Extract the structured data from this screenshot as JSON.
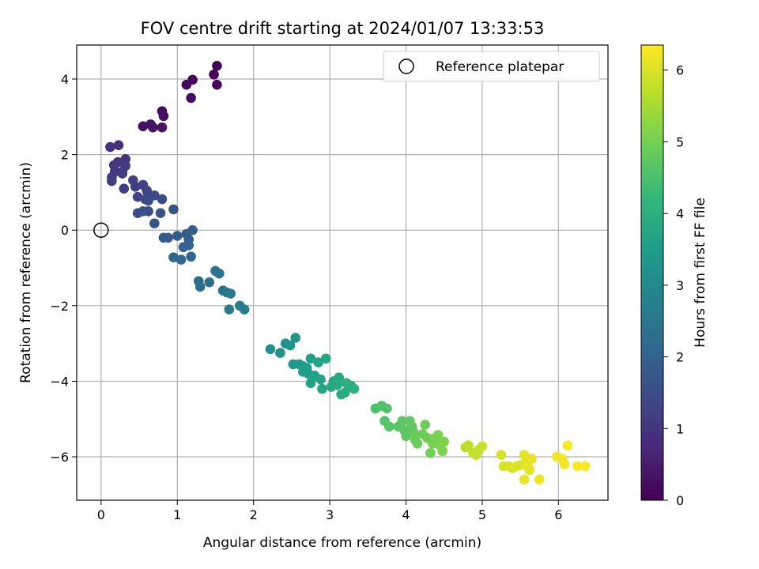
{
  "chart_data": {
    "type": "scatter",
    "title": "FOV centre drift starting at 2024/01/07 13:33:53",
    "xlabel": "Angular distance from reference (arcmin)",
    "ylabel": "Rotation from reference (arcmin)",
    "xlim": [
      -0.32,
      6.65
    ],
    "ylim": [
      -7.15,
      4.9
    ],
    "xticks": [
      0,
      1,
      2,
      3,
      4,
      5,
      6
    ],
    "yticks": [
      -6,
      -4,
      -2,
      0,
      2,
      4
    ],
    "xtick_labels": [
      "0",
      "1",
      "2",
      "3",
      "4",
      "5",
      "6"
    ],
    "ytick_labels": [
      "−6",
      "−4",
      "−2",
      "0",
      "2",
      "4"
    ],
    "grid": true,
    "legend": {
      "position": "top-right",
      "label": "Reference platepar"
    },
    "reference_point": [
      0,
      0
    ],
    "colorbar": {
      "label": "Hours from first FF file",
      "range": [
        0,
        6.35
      ],
      "ticks": [
        0,
        1,
        2,
        3,
        4,
        5,
        6
      ],
      "tick_labels": [
        "0",
        "1",
        "2",
        "3",
        "4",
        "5",
        "6"
      ],
      "colormap": "viridis"
    },
    "colors": {
      "viridis": [
        "#440154",
        "#482878",
        "#3e4989",
        "#31688e",
        "#26828e",
        "#1f9e89",
        "#35b779",
        "#6ece58",
        "#b5de2b",
        "#fde725"
      ],
      "grid": "#b0b0b0",
      "axis": "#000000"
    },
    "points": [
      [
        1.52,
        4.35,
        0.05
      ],
      [
        1.48,
        4.12,
        0.08
      ],
      [
        1.2,
        3.98,
        0.1
      ],
      [
        1.12,
        3.85,
        0.12
      ],
      [
        1.52,
        3.85,
        0.14
      ],
      [
        1.18,
        3.5,
        0.17
      ],
      [
        0.8,
        3.15,
        0.22
      ],
      [
        0.82,
        3.02,
        0.25
      ],
      [
        0.55,
        2.75,
        0.28
      ],
      [
        0.65,
        2.8,
        0.3
      ],
      [
        0.68,
        2.72,
        0.32
      ],
      [
        0.8,
        2.72,
        0.35
      ],
      [
        0.12,
        2.2,
        0.9
      ],
      [
        0.23,
        2.25,
        0.92
      ],
      [
        0.32,
        1.88,
        0.95
      ],
      [
        0.22,
        1.8,
        1.0
      ],
      [
        0.17,
        1.72,
        1.02
      ],
      [
        0.28,
        1.55,
        1.05
      ],
      [
        0.18,
        1.55,
        1.05
      ],
      [
        0.32,
        1.7,
        1.08
      ],
      [
        0.28,
        1.5,
        1.1
      ],
      [
        0.14,
        1.4,
        1.12
      ],
      [
        0.14,
        1.3,
        1.15
      ],
      [
        0.3,
        1.1,
        1.2
      ],
      [
        0.42,
        1.32,
        1.22
      ],
      [
        0.45,
        1.15,
        1.25
      ],
      [
        0.55,
        1.2,
        1.3
      ],
      [
        0.48,
        0.88,
        1.32
      ],
      [
        0.6,
        1.05,
        1.35
      ],
      [
        0.58,
        0.82,
        1.38
      ],
      [
        0.62,
        0.95,
        1.4
      ],
      [
        0.7,
        0.92,
        1.42
      ],
      [
        0.8,
        0.82,
        1.45
      ],
      [
        0.62,
        0.78,
        1.45
      ],
      [
        0.62,
        0.5,
        1.5
      ],
      [
        0.48,
        0.45,
        1.52
      ],
      [
        0.55,
        0.5,
        1.55
      ],
      [
        0.78,
        0.45,
        1.6
      ],
      [
        0.95,
        0.55,
        1.62
      ],
      [
        0.7,
        0.18,
        1.7
      ],
      [
        0.82,
        -0.2,
        1.8
      ],
      [
        0.88,
        -0.2,
        1.82
      ],
      [
        1.0,
        -0.15,
        1.85
      ],
      [
        1.12,
        -0.1,
        1.88
      ],
      [
        1.2,
        0.0,
        1.9
      ],
      [
        1.15,
        -0.25,
        1.92
      ],
      [
        1.08,
        -0.45,
        1.95
      ],
      [
        1.15,
        -0.4,
        2.0
      ],
      [
        0.95,
        -0.72,
        2.05
      ],
      [
        1.05,
        -0.78,
        2.08
      ],
      [
        1.18,
        -0.7,
        2.1
      ],
      [
        1.28,
        -1.35,
        2.2
      ],
      [
        1.3,
        -1.5,
        2.25
      ],
      [
        1.42,
        -1.38,
        2.3
      ],
      [
        1.5,
        -1.08,
        2.35
      ],
      [
        1.55,
        -1.15,
        2.38
      ],
      [
        1.6,
        -1.6,
        2.45
      ],
      [
        1.65,
        -1.65,
        2.5
      ],
      [
        1.7,
        -1.68,
        2.55
      ],
      [
        1.68,
        -2.1,
        2.6
      ],
      [
        1.82,
        -2.0,
        2.62
      ],
      [
        1.88,
        -2.1,
        2.65
      ],
      [
        2.22,
        -3.15,
        3.15
      ],
      [
        2.35,
        -3.25,
        3.2
      ],
      [
        2.42,
        -3.0,
        3.25
      ],
      [
        2.48,
        -3.05,
        3.3
      ],
      [
        2.55,
        -2.85,
        3.35
      ],
      [
        2.52,
        -3.55,
        3.4
      ],
      [
        2.6,
        -3.55,
        3.45
      ],
      [
        2.65,
        -3.6,
        3.5
      ],
      [
        2.65,
        -3.75,
        3.52
      ],
      [
        2.72,
        -3.8,
        3.55
      ],
      [
        2.7,
        -3.65,
        3.58
      ],
      [
        2.75,
        -3.4,
        3.6
      ],
      [
        2.8,
        -3.85,
        3.62
      ],
      [
        2.75,
        -4.05,
        3.65
      ],
      [
        2.85,
        -3.5,
        3.68
      ],
      [
        2.88,
        -3.95,
        3.7
      ],
      [
        2.9,
        -4.2,
        3.72
      ],
      [
        2.95,
        -3.4,
        3.75
      ],
      [
        3.02,
        -4.15,
        3.78
      ],
      [
        3.05,
        -4.0,
        3.8
      ],
      [
        3.1,
        -4.1,
        3.85
      ],
      [
        3.12,
        -3.9,
        3.88
      ],
      [
        3.15,
        -4.35,
        3.9
      ],
      [
        3.2,
        -4.3,
        3.92
      ],
      [
        3.22,
        -4.05,
        3.95
      ],
      [
        3.28,
        -4.12,
        3.97
      ],
      [
        3.32,
        -4.2,
        4.0
      ],
      [
        3.6,
        -4.72,
        4.5
      ],
      [
        3.68,
        -4.65,
        4.55
      ],
      [
        3.75,
        -4.72,
        4.58
      ],
      [
        3.72,
        -5.05,
        4.6
      ],
      [
        3.78,
        -5.2,
        4.62
      ],
      [
        3.9,
        -5.2,
        4.65
      ],
      [
        3.95,
        -5.05,
        4.7
      ],
      [
        3.98,
        -5.3,
        4.72
      ],
      [
        4.0,
        -5.45,
        4.75
      ],
      [
        4.05,
        -5.05,
        4.78
      ],
      [
        4.08,
        -5.2,
        4.8
      ],
      [
        4.1,
        -5.35,
        4.82
      ],
      [
        4.12,
        -5.55,
        4.85
      ],
      [
        4.15,
        -5.65,
        4.88
      ],
      [
        4.22,
        -5.4,
        4.9
      ],
      [
        4.25,
        -5.15,
        4.92
      ],
      [
        4.28,
        -5.5,
        4.95
      ],
      [
        4.32,
        -5.9,
        4.97
      ],
      [
        4.35,
        -5.65,
        5.0
      ],
      [
        4.38,
        -5.5,
        5.02
      ],
      [
        4.42,
        -5.42,
        5.05
      ],
      [
        4.45,
        -5.7,
        5.08
      ],
      [
        4.48,
        -5.85,
        5.1
      ],
      [
        4.5,
        -5.6,
        5.12
      ],
      [
        4.78,
        -5.75,
        5.7
      ],
      [
        4.82,
        -5.7,
        5.72
      ],
      [
        4.88,
        -5.9,
        5.75
      ],
      [
        4.92,
        -5.95,
        5.78
      ],
      [
        4.95,
        -5.82,
        5.8
      ],
      [
        5.0,
        -5.72,
        5.85
      ],
      [
        5.25,
        -5.95,
        5.95
      ],
      [
        5.28,
        -6.25,
        5.98
      ],
      [
        5.35,
        -6.25,
        6.0
      ],
      [
        5.4,
        -6.3,
        6.02
      ],
      [
        5.45,
        -6.25,
        6.05
      ],
      [
        5.5,
        -6.22,
        6.05
      ],
      [
        5.55,
        -5.95,
        6.08
      ],
      [
        5.58,
        -6.1,
        6.1
      ],
      [
        5.6,
        -6.25,
        6.12
      ],
      [
        5.62,
        -6.35,
        6.12
      ],
      [
        5.55,
        -6.6,
        6.15
      ],
      [
        5.65,
        -6.05,
        6.15
      ],
      [
        5.75,
        -6.6,
        6.18
      ],
      [
        5.98,
        -6.0,
        6.2
      ],
      [
        6.05,
        -6.05,
        6.22
      ],
      [
        6.08,
        -6.2,
        6.25
      ],
      [
        6.12,
        -5.7,
        6.27
      ],
      [
        6.25,
        -6.25,
        6.3
      ],
      [
        6.35,
        -6.25,
        6.32
      ]
    ]
  }
}
